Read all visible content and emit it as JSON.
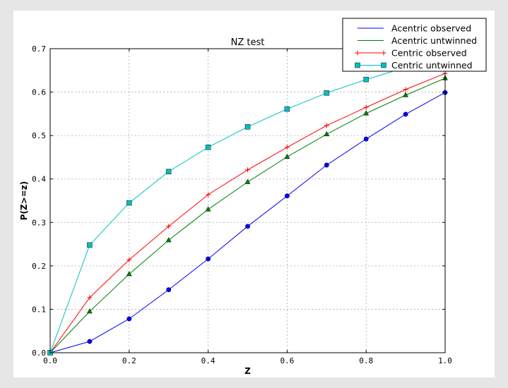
{
  "chart_data": {
    "type": "line",
    "title": "NZ test",
    "xlabel": "Z",
    "ylabel": "P(Z>=z)",
    "xlim": [
      0.0,
      1.0
    ],
    "ylim": [
      0.0,
      0.7
    ],
    "xticks": [
      "0.0",
      "0.2",
      "0.4",
      "0.6",
      "0.8",
      "1.0"
    ],
    "yticks": [
      "0.0",
      "0.1",
      "0.2",
      "0.3",
      "0.4",
      "0.5",
      "0.6",
      "0.7"
    ],
    "grid": true,
    "legend_position": "top-right",
    "x": [
      0.0,
      0.1,
      0.2,
      0.3,
      0.4,
      0.5,
      0.6,
      0.7,
      0.8,
      0.9,
      1.0
    ],
    "series": [
      {
        "name": "Acentric observed",
        "color": "#0000ff",
        "marker": "circle",
        "legend_marker": "none",
        "values": [
          0.0,
          0.026,
          0.078,
          0.145,
          0.216,
          0.291,
          0.361,
          0.432,
          0.492,
          0.549,
          0.599
        ]
      },
      {
        "name": "Acentric untwinned",
        "color": "#008000",
        "marker": "triangle",
        "legend_marker": "none",
        "values": [
          0.0,
          0.095,
          0.181,
          0.259,
          0.33,
          0.393,
          0.451,
          0.503,
          0.551,
          0.593,
          0.632
        ]
      },
      {
        "name": "Centric observed",
        "color": "#ff0000",
        "marker": "plus",
        "legend_marker": "plus",
        "values": [
          0.0,
          0.127,
          0.214,
          0.291,
          0.364,
          0.421,
          0.473,
          0.523,
          0.565,
          0.606,
          0.643
        ]
      },
      {
        "name": "Centric untwinned",
        "color": "#00bfbf",
        "marker": "square",
        "legend_marker": "square",
        "values": [
          0.0,
          0.248,
          0.345,
          0.417,
          0.473,
          0.52,
          0.561,
          0.598,
          0.629,
          0.657,
          0.683
        ]
      }
    ]
  }
}
